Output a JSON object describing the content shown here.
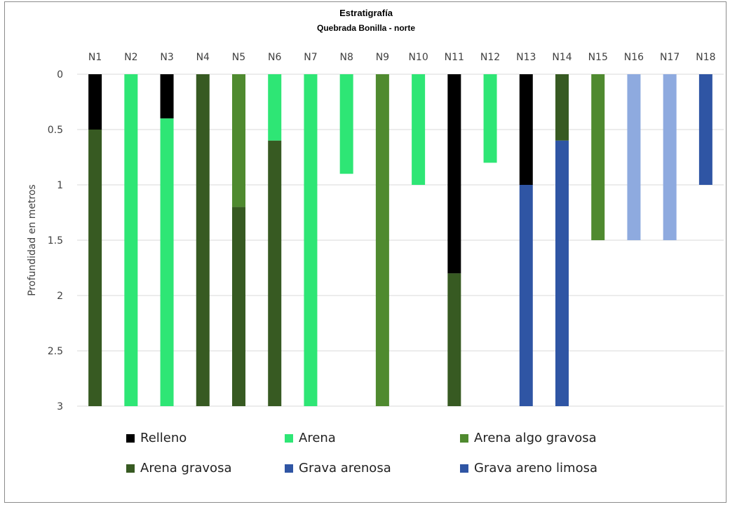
{
  "chart_data": {
    "type": "bar",
    "title": "Estratigrafía",
    "subtitle": "Quebrada Bonilla - norte",
    "ylabel": "Profundidad en metros",
    "ylim": [
      0,
      3
    ],
    "y_ticks": [
      "0",
      "0.5",
      "1",
      "1.5",
      "2",
      "2.5",
      "3"
    ],
    "grid": true,
    "categories": [
      "N1",
      "N2",
      "N3",
      "N4",
      "N5",
      "N6",
      "N7",
      "N8",
      "N9",
      "N10",
      "N11",
      "N12",
      "N13",
      "N14",
      "N15",
      "N16",
      "N17",
      "N18"
    ],
    "series": [
      {
        "name": "Relleno",
        "color": "#000000",
        "values": [
          0.5,
          0,
          0.4,
          0,
          0,
          0,
          0,
          0,
          0,
          0,
          1.8,
          0,
          1.0,
          0,
          0,
          0,
          0,
          0
        ]
      },
      {
        "name": "Arena",
        "color": "#2ee675",
        "values": [
          0,
          3,
          2.6,
          0,
          0,
          0.6,
          3,
          0.9,
          0,
          1.0,
          0,
          0.8,
          0,
          0,
          0,
          0,
          0,
          0
        ]
      },
      {
        "name": "Arena algo gravosa",
        "color": "#4f8a2f",
        "values": [
          0,
          0,
          0,
          0,
          1.2,
          0,
          0,
          0,
          3,
          0,
          0,
          0,
          0,
          0,
          1.5,
          0,
          0,
          0
        ]
      },
      {
        "name": "Arena gravosa",
        "color": "#375a22",
        "values": [
          2.5,
          0,
          0,
          3,
          1.8,
          2.4,
          0,
          0,
          0,
          0,
          1.2,
          0,
          0,
          0.6,
          0,
          0,
          0,
          0
        ]
      },
      {
        "name": "Grava arenosa",
        "color": "#2f55a4",
        "values": [
          0,
          0,
          0,
          0,
          0,
          0,
          0,
          0,
          0,
          0,
          0,
          0,
          2.0,
          2.4,
          0,
          1.5,
          1.5,
          1.0
        ]
      },
      {
        "name": "Grava areno limosa",
        "color": "#2f55a4",
        "values": [
          0,
          0,
          0,
          0,
          0,
          0,
          0,
          0,
          0,
          0,
          0,
          0,
          0,
          0,
          0,
          0,
          0,
          0
        ]
      }
    ],
    "bar_colors_override": {
      "N16": "#8eaadf",
      "N17": "#8eaadf",
      "N18": "#2f55a4"
    }
  }
}
